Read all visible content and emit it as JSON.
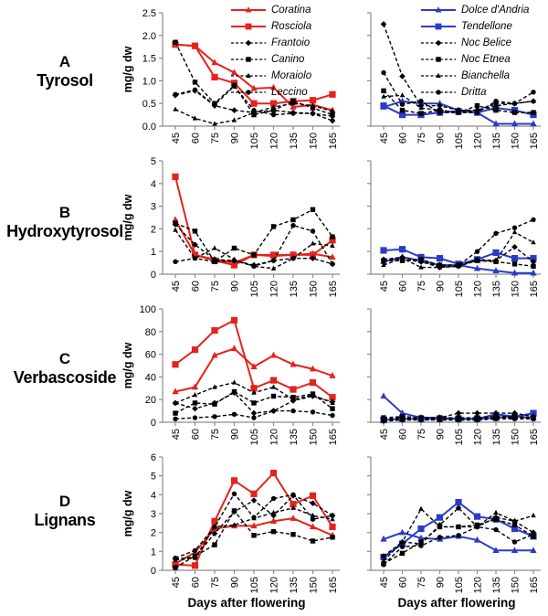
{
  "figure": {
    "ylabel": "mg/g dw",
    "xlabel": "Days after flowering",
    "colors": {
      "red": "#E3231D",
      "blue": "#2B3BC7",
      "black": "#000000",
      "axis": "#8C8C8C"
    },
    "rows": [
      {
        "letter": "A",
        "compound": "Tyrosol"
      },
      {
        "letter": "B",
        "compound": "Hydroxytyrosol"
      },
      {
        "letter": "C",
        "compound": "Verbascoside"
      },
      {
        "letter": "D",
        "compound": "Lignans"
      }
    ]
  },
  "chart_data": [
    {
      "id": "tyrosol-left",
      "type": "line",
      "row": 0,
      "col": "left",
      "legend": true,
      "x": [
        45,
        60,
        75,
        90,
        105,
        120,
        135,
        150,
        165
      ],
      "ylim": [
        0,
        2.5
      ],
      "yticks": [
        "0.0",
        "0.5",
        "1.0",
        "1.5",
        "2.0",
        "2.5"
      ],
      "show_ytick_labels": true,
      "series": [
        {
          "name": "Coratina",
          "color": "red",
          "marker": "triangle",
          "dash": false,
          "values": [
            1.8,
            1.77,
            1.4,
            1.18,
            0.83,
            0.85,
            0.42,
            0.47,
            0.35
          ]
        },
        {
          "name": "Rosciola",
          "color": "red",
          "marker": "square",
          "dash": false,
          "values": [
            1.8,
            1.77,
            1.08,
            0.95,
            0.5,
            0.5,
            0.55,
            0.57,
            0.7
          ]
        },
        {
          "name": "Frantoio",
          "color": "black",
          "marker": "diamond",
          "dash": true,
          "values": [
            0.68,
            0.78,
            0.45,
            0.35,
            0.3,
            0.35,
            0.3,
            0.28,
            0.12
          ]
        },
        {
          "name": "Canino",
          "color": "black",
          "marker": "square",
          "dash": true,
          "values": [
            1.85,
            0.97,
            0.5,
            0.9,
            0.25,
            0.35,
            0.55,
            0.4,
            0.25
          ]
        },
        {
          "name": "Moraiolo",
          "color": "black",
          "marker": "triangle",
          "dash": true,
          "values": [
            0.37,
            0.17,
            0.05,
            0.13,
            0.3,
            0.42,
            0.5,
            0.45,
            0.33
          ]
        },
        {
          "name": "Leccino",
          "color": "black",
          "marker": "circle",
          "dash": true,
          "values": [
            0.7,
            0.8,
            0.47,
            0.88,
            0.35,
            0.25,
            0.28,
            0.28,
            0.22
          ]
        }
      ]
    },
    {
      "id": "tyrosol-right",
      "type": "line",
      "row": 0,
      "col": "right",
      "legend": true,
      "x": [
        45,
        60,
        75,
        90,
        105,
        120,
        135,
        150,
        165
      ],
      "ylim": [
        0,
        2.5
      ],
      "yticks": [
        "0.0",
        "0.5",
        "1.0",
        "1.5",
        "2.0",
        "2.5"
      ],
      "show_ytick_labels": false,
      "series": [
        {
          "name": "Dolce d'Andria",
          "color": "blue",
          "marker": "triangle",
          "dash": false,
          "values": [
            0.42,
            0.55,
            0.5,
            0.5,
            0.35,
            0.3,
            0.05,
            0.05,
            0.05
          ]
        },
        {
          "name": "Tendellone",
          "color": "blue",
          "marker": "square",
          "dash": false,
          "values": [
            0.45,
            0.25,
            0.25,
            0.3,
            0.33,
            0.3,
            0.4,
            0.35,
            0.25
          ]
        },
        {
          "name": "Noc Belice",
          "color": "black",
          "marker": "diamond",
          "dash": true,
          "values": [
            2.25,
            1.1,
            0.45,
            0.45,
            0.35,
            0.35,
            0.5,
            0.5,
            0.55
          ]
        },
        {
          "name": "Noc Etnea",
          "color": "black",
          "marker": "square",
          "dash": true,
          "values": [
            0.78,
            0.35,
            0.28,
            0.35,
            0.3,
            0.45,
            0.35,
            0.3,
            0.3
          ]
        },
        {
          "name": "Bianchella",
          "color": "black",
          "marker": "triangle",
          "dash": true,
          "values": [
            0.65,
            0.68,
            0.4,
            0.35,
            0.3,
            0.35,
            0.45,
            0.5,
            0.55
          ]
        },
        {
          "name": "Dritta",
          "color": "black",
          "marker": "circle",
          "dash": true,
          "values": [
            1.18,
            0.48,
            0.55,
            0.3,
            0.3,
            0.3,
            0.55,
            0.5,
            0.75
          ]
        }
      ]
    },
    {
      "id": "hydroxytyrosol-left",
      "type": "line",
      "row": 1,
      "col": "left",
      "legend": false,
      "x": [
        45,
        60,
        75,
        90,
        105,
        120,
        135,
        150,
        165
      ],
      "ylim": [
        0,
        5
      ],
      "yticks": [
        "0",
        "1",
        "2",
        "3",
        "4",
        "5"
      ],
      "show_ytick_labels": true,
      "series": [
        {
          "name": "Coratina",
          "color": "red",
          "marker": "triangle",
          "dash": false,
          "values": [
            2.4,
            0.85,
            0.65,
            0.5,
            0.85,
            0.8,
            0.85,
            0.9,
            0.75
          ]
        },
        {
          "name": "Rosciola",
          "color": "red",
          "marker": "square",
          "dash": false,
          "values": [
            4.3,
            0.85,
            0.6,
            0.4,
            0.85,
            0.85,
            0.85,
            0.85,
            1.5
          ]
        },
        {
          "name": "Frantoio",
          "color": "black",
          "marker": "diamond",
          "dash": true,
          "values": [
            2.2,
            1.3,
            0.65,
            0.6,
            0.4,
            0.6,
            0.7,
            0.7,
            0.45
          ]
        },
        {
          "name": "Canino",
          "color": "black",
          "marker": "square",
          "dash": true,
          "values": [
            2.25,
            1.9,
            0.55,
            1.15,
            0.85,
            2.1,
            2.4,
            2.85,
            1.65
          ]
        },
        {
          "name": "Moraiolo",
          "color": "black",
          "marker": "triangle",
          "dash": true,
          "values": [
            1.95,
            0.7,
            1.15,
            0.65,
            0.35,
            0.25,
            0.7,
            1.35,
            1.25
          ]
        },
        {
          "name": "Leccino",
          "color": "black",
          "marker": "circle",
          "dash": true,
          "values": [
            0.55,
            0.7,
            0.55,
            0.6,
            0.35,
            0.6,
            2.15,
            1.9,
            0.45
          ]
        }
      ]
    },
    {
      "id": "hydroxytyrosol-right",
      "type": "line",
      "row": 1,
      "col": "right",
      "legend": false,
      "x": [
        45,
        60,
        75,
        90,
        105,
        120,
        135,
        150,
        165
      ],
      "ylim": [
        0,
        5
      ],
      "yticks": [
        "0",
        "1",
        "2",
        "3",
        "4",
        "5"
      ],
      "show_ytick_labels": false,
      "series": [
        {
          "name": "Dolce d'Andria",
          "color": "blue",
          "marker": "triangle",
          "dash": false,
          "values": [
            0.55,
            0.75,
            0.6,
            0.4,
            0.4,
            0.25,
            0.15,
            0.05,
            0.05
          ]
        },
        {
          "name": "Tendellone",
          "color": "blue",
          "marker": "square",
          "dash": false,
          "values": [
            1.05,
            1.1,
            0.75,
            0.7,
            0.45,
            0.65,
            0.95,
            0.7,
            0.7
          ]
        },
        {
          "name": "Noc Belice",
          "color": "black",
          "marker": "diamond",
          "dash": true,
          "values": [
            0.65,
            0.75,
            0.55,
            0.3,
            0.35,
            0.65,
            0.6,
            1.2,
            0.55
          ]
        },
        {
          "name": "Noc Etnea",
          "color": "black",
          "marker": "square",
          "dash": true,
          "values": [
            0.6,
            0.6,
            0.65,
            0.4,
            0.4,
            0.6,
            0.55,
            0.45,
            0.35
          ]
        },
        {
          "name": "Bianchella",
          "color": "black",
          "marker": "triangle",
          "dash": true,
          "values": [
            0.4,
            0.7,
            0.3,
            0.3,
            0.35,
            0.6,
            0.6,
            1.85,
            1.4
          ]
        },
        {
          "name": "Dritta",
          "color": "black",
          "marker": "circle",
          "dash": true,
          "values": [
            0.6,
            0.65,
            0.55,
            0.35,
            0.4,
            1.0,
            1.8,
            2.05,
            2.4
          ]
        }
      ]
    },
    {
      "id": "verbascoside-left",
      "type": "line",
      "row": 2,
      "col": "left",
      "legend": false,
      "x": [
        45,
        60,
        75,
        90,
        105,
        120,
        135,
        150,
        165
      ],
      "ylim": [
        0,
        100
      ],
      "yticks": [
        "0",
        "20",
        "40",
        "60",
        "80",
        "100"
      ],
      "show_ytick_labels": true,
      "series": [
        {
          "name": "Coratina",
          "color": "red",
          "marker": "triangle",
          "dash": false,
          "values": [
            27,
            31,
            59,
            65,
            49,
            59,
            51,
            47,
            41
          ]
        },
        {
          "name": "Rosciola",
          "color": "red",
          "marker": "square",
          "dash": false,
          "values": [
            51,
            64,
            81,
            90,
            30,
            37,
            29,
            35,
            22
          ]
        },
        {
          "name": "Frantoio",
          "color": "black",
          "marker": "diamond",
          "dash": true,
          "values": [
            17,
            12,
            17,
            26,
            8,
            10,
            19,
            23,
            18
          ]
        },
        {
          "name": "Canino",
          "color": "black",
          "marker": "square",
          "dash": true,
          "values": [
            8,
            17,
            16,
            27,
            17,
            23,
            22,
            25,
            12
          ]
        },
        {
          "name": "Moraiolo",
          "color": "black",
          "marker": "triangle",
          "dash": true,
          "values": [
            17,
            24,
            31,
            35,
            26,
            31,
            20,
            24,
            17
          ]
        },
        {
          "name": "Leccino",
          "color": "black",
          "marker": "circle",
          "dash": true,
          "values": [
            3,
            4,
            5,
            7,
            4,
            10,
            10,
            9,
            6
          ]
        }
      ]
    },
    {
      "id": "verbascoside-right",
      "type": "line",
      "row": 2,
      "col": "right",
      "legend": false,
      "x": [
        45,
        60,
        75,
        90,
        105,
        120,
        135,
        150,
        165
      ],
      "ylim": [
        0,
        100
      ],
      "yticks": [
        "0",
        "20",
        "40",
        "60",
        "80",
        "100"
      ],
      "show_ytick_labels": false,
      "series": [
        {
          "name": "Dolce d'Andria",
          "color": "blue",
          "marker": "triangle",
          "dash": false,
          "values": [
            23,
            8,
            4,
            4,
            3,
            3,
            7,
            5,
            4
          ]
        },
        {
          "name": "Tendellone",
          "color": "blue",
          "marker": "square",
          "dash": false,
          "values": [
            2,
            3,
            3,
            3,
            3,
            3,
            4,
            5,
            8
          ]
        },
        {
          "name": "Noc Belice",
          "color": "black",
          "marker": "diamond",
          "dash": true,
          "values": [
            3,
            4,
            4,
            4,
            8,
            8,
            8,
            8,
            5
          ]
        },
        {
          "name": "Noc Etnea",
          "color": "black",
          "marker": "square",
          "dash": true,
          "values": [
            4,
            5,
            4,
            4,
            4,
            4,
            5,
            5,
            4
          ]
        },
        {
          "name": "Bianchella",
          "color": "black",
          "marker": "triangle",
          "dash": true,
          "values": [
            2,
            3,
            3,
            3,
            2,
            3,
            4,
            4,
            3
          ]
        },
        {
          "name": "Dritta",
          "color": "black",
          "marker": "circle",
          "dash": true,
          "values": [
            1,
            2,
            2,
            2,
            2,
            2,
            3,
            3,
            3
          ]
        }
      ]
    },
    {
      "id": "lignans-left",
      "type": "line",
      "row": 3,
      "col": "left",
      "legend": false,
      "x": [
        45,
        60,
        75,
        90,
        105,
        120,
        135,
        150,
        165
      ],
      "ylim": [
        0,
        6
      ],
      "yticks": [
        "0",
        "1",
        "2",
        "3",
        "4",
        "5",
        "6"
      ],
      "show_ytick_labels": true,
      "series": [
        {
          "name": "Coratina",
          "color": "red",
          "marker": "triangle",
          "dash": false,
          "values": [
            0.35,
            0.95,
            2.2,
            2.35,
            2.35,
            2.6,
            2.75,
            2.3,
            1.85
          ]
        },
        {
          "name": "Rosciola",
          "color": "red",
          "marker": "square",
          "dash": false,
          "values": [
            0.3,
            0.25,
            2.6,
            4.75,
            4.05,
            5.15,
            3.5,
            3.95,
            2.3
          ]
        },
        {
          "name": "Frantoio",
          "color": "black",
          "marker": "diamond",
          "dash": true,
          "values": [
            0.6,
            0.7,
            1.95,
            3.1,
            3.7,
            2.9,
            3.95,
            3.55,
            2.9
          ]
        },
        {
          "name": "Canino",
          "color": "black",
          "marker": "square",
          "dash": true,
          "values": [
            0.15,
            0.75,
            1.35,
            3.15,
            1.85,
            2.05,
            1.9,
            1.55,
            1.75
          ]
        },
        {
          "name": "Moraiolo",
          "color": "black",
          "marker": "triangle",
          "dash": true,
          "values": [
            0.55,
            0.65,
            2.3,
            2.4,
            2.75,
            3.05,
            3.3,
            2.9,
            2.7
          ]
        },
        {
          "name": "Leccino",
          "color": "black",
          "marker": "circle",
          "dash": true,
          "values": [
            0.65,
            1.05,
            2.3,
            4.05,
            2.8,
            3.8,
            4.0,
            2.7,
            2.9
          ]
        }
      ]
    },
    {
      "id": "lignans-right",
      "type": "line",
      "row": 3,
      "col": "right",
      "legend": false,
      "x": [
        45,
        60,
        75,
        90,
        105,
        120,
        135,
        150,
        165
      ],
      "ylim": [
        0,
        6
      ],
      "yticks": [
        "0",
        "1",
        "2",
        "3",
        "4",
        "5",
        "6"
      ],
      "show_ytick_labels": false,
      "series": [
        {
          "name": "Dolce d'Andria",
          "color": "blue",
          "marker": "triangle",
          "dash": false,
          "values": [
            1.65,
            2.0,
            1.7,
            1.65,
            1.8,
            1.6,
            1.05,
            1.05,
            1.05
          ]
        },
        {
          "name": "Tendellone",
          "color": "blue",
          "marker": "square",
          "dash": false,
          "values": [
            0.7,
            1.4,
            2.2,
            2.8,
            3.6,
            2.85,
            2.7,
            2.2,
            1.8
          ]
        },
        {
          "name": "Noc Belice",
          "color": "black",
          "marker": "diamond",
          "dash": true,
          "values": [
            0.75,
            1.5,
            1.4,
            2.4,
            3.3,
            2.3,
            2.8,
            2.6,
            2.0
          ]
        },
        {
          "name": "Noc Etnea",
          "color": "black",
          "marker": "square",
          "dash": true,
          "values": [
            0.35,
            0.9,
            1.5,
            2.3,
            2.3,
            2.4,
            2.7,
            2.4,
            1.8
          ]
        },
        {
          "name": "Bianchella",
          "color": "black",
          "marker": "triangle",
          "dash": true,
          "values": [
            0.5,
            1.5,
            3.25,
            2.3,
            2.3,
            2.3,
            3.05,
            2.6,
            2.9
          ]
        },
        {
          "name": "Dritta",
          "color": "black",
          "marker": "circle",
          "dash": true,
          "values": [
            0.3,
            1.25,
            1.3,
            1.75,
            1.85,
            2.3,
            2.15,
            1.5,
            1.9
          ]
        }
      ]
    }
  ]
}
